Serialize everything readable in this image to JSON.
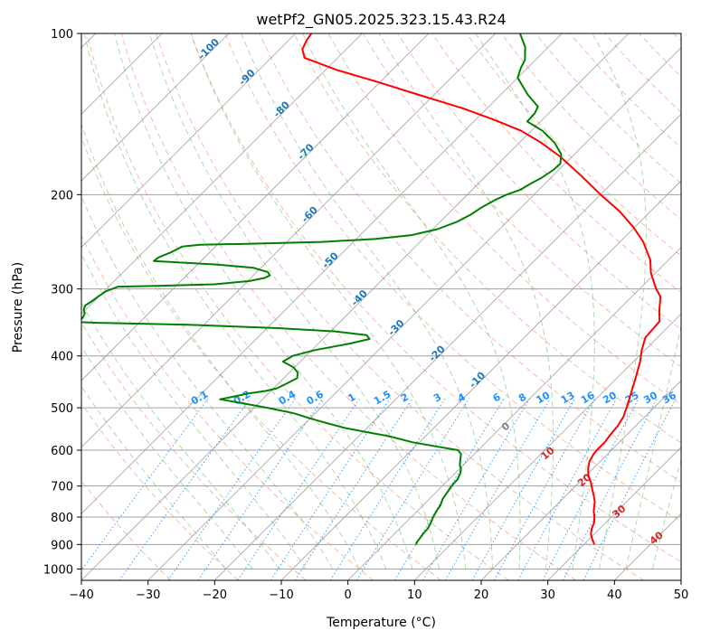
{
  "chart_data": {
    "type": "line",
    "title": "wetPf2_GN05.2025.323.15.43.R24",
    "xlabel": "Temperature (°C)",
    "ylabel": "Pressure (hPa)",
    "xlim": [
      -40,
      50
    ],
    "ylim": [
      1050,
      100
    ],
    "y_scale": "log",
    "x_ticks": [
      "−40",
      "−30",
      "−20",
      "−10",
      "0",
      "10",
      "20",
      "30",
      "40",
      "50"
    ],
    "y_ticks": [
      "100",
      "200",
      "300",
      "400",
      "500",
      "600",
      "700",
      "800",
      "900",
      "1000"
    ],
    "colors": {
      "temperature": "#ff0000",
      "dewpoint": "#008000",
      "isotherm": "#a0a0a0",
      "isobar": "#a0a0a0",
      "dry_adiabat": "#f08060",
      "moist_adiabat": "#60b060",
      "mixing_ratio": "#1e90ff",
      "label_blue": "#1f77b4",
      "label_red": "#d62728"
    },
    "series": [
      {
        "key": "temperature",
        "points": [
          [
            31.6,
            900
          ],
          [
            30.5,
            880
          ],
          [
            29.5,
            860
          ],
          [
            28.8,
            840
          ],
          [
            28.3,
            820
          ],
          [
            27.5,
            800
          ],
          [
            26.5,
            780
          ],
          [
            25.3,
            750
          ],
          [
            24.2,
            730
          ],
          [
            23.0,
            710
          ],
          [
            21.8,
            690
          ],
          [
            20.4,
            670
          ],
          [
            19.3,
            650
          ],
          [
            18.4,
            630
          ],
          [
            17.9,
            610
          ],
          [
            17.8,
            600
          ],
          [
            17.8,
            580
          ],
          [
            17.5,
            560
          ],
          [
            17.3,
            540
          ],
          [
            16.8,
            520
          ],
          [
            15.9,
            500
          ],
          [
            14.4,
            470
          ],
          [
            12.8,
            440
          ],
          [
            11.0,
            410
          ],
          [
            9.5,
            390
          ],
          [
            8.2,
            370
          ],
          [
            8.0,
            355
          ],
          [
            7.9,
            345
          ],
          [
            6.3,
            330
          ],
          [
            4.3,
            310
          ],
          [
            2.5,
            300
          ],
          [
            -0.7,
            280
          ],
          [
            -2.7,
            265
          ],
          [
            -6.5,
            245
          ],
          [
            -10.2,
            230
          ],
          [
            -14.6,
            215
          ],
          [
            -20.0,
            200
          ],
          [
            -25.5,
            185
          ],
          [
            -31.7,
            170
          ],
          [
            -36.7,
            160
          ],
          [
            -41.5,
            152
          ],
          [
            -47.2,
            145
          ],
          [
            -53.6,
            138
          ],
          [
            -62.5,
            130
          ],
          [
            -70.6,
            123
          ],
          [
            -78.3,
            117
          ],
          [
            -85.0,
            111
          ],
          [
            -86.6,
            107
          ],
          [
            -87.3,
            103
          ],
          [
            -87.6,
            100
          ]
        ]
      },
      {
        "key": "dewpoint",
        "points": [
          [
            4.8,
            900
          ],
          [
            4.6,
            890
          ],
          [
            4.5,
            880
          ],
          [
            4.3,
            860
          ],
          [
            4.2,
            840
          ],
          [
            3.8,
            820
          ],
          [
            3.3,
            800
          ],
          [
            2.9,
            780
          ],
          [
            2.6,
            760
          ],
          [
            2.0,
            740
          ],
          [
            1.7,
            720
          ],
          [
            1.4,
            700
          ],
          [
            1.3,
            690
          ],
          [
            1.3,
            680
          ],
          [
            1.0,
            670
          ],
          [
            0.7,
            660
          ],
          [
            0.2,
            650
          ],
          [
            -0.5,
            640
          ],
          [
            -1.0,
            630
          ],
          [
            -1.5,
            620
          ],
          [
            -2.0,
            610
          ],
          [
            -3.0,
            600
          ],
          [
            -7.0,
            590
          ],
          [
            -11.0,
            580
          ],
          [
            -15.5,
            565
          ],
          [
            -19.5,
            555
          ],
          [
            -23.4,
            545
          ],
          [
            -26.5,
            535
          ],
          [
            -29.5,
            525
          ],
          [
            -33.2,
            512
          ],
          [
            -38.0,
            500
          ],
          [
            -42.6,
            490
          ],
          [
            -46.4,
            482
          ],
          [
            -44.3,
            475
          ],
          [
            -43.0,
            470
          ],
          [
            -40.7,
            465
          ],
          [
            -39.5,
            460
          ],
          [
            -38.7,
            450
          ],
          [
            -38.0,
            440
          ],
          [
            -38.7,
            430
          ],
          [
            -40.2,
            420
          ],
          [
            -42.6,
            410
          ],
          [
            -42.0,
            400
          ],
          [
            -39.5,
            390
          ],
          [
            -35.5,
            380
          ],
          [
            -33.0,
            372
          ],
          [
            -34.0,
            366
          ],
          [
            -39.3,
            360
          ],
          [
            -48.4,
            355
          ],
          [
            -62.4,
            350
          ],
          [
            -76.2,
            347
          ],
          [
            -78.8,
            346
          ],
          [
            -79.2,
            343
          ],
          [
            -79.3,
            338
          ],
          [
            -79.6,
            333
          ],
          [
            -80.3,
            328
          ],
          [
            -80.7,
            322
          ],
          [
            -80.4,
            317
          ],
          [
            -80.1,
            310
          ],
          [
            -79.7,
            303
          ],
          [
            -78.6,
            297
          ],
          [
            -72.9,
            296
          ],
          [
            -64.5,
            294
          ],
          [
            -59.7,
            290
          ],
          [
            -57.9,
            286
          ],
          [
            -57.5,
            283
          ],
          [
            -58.3,
            279
          ],
          [
            -61.1,
            274
          ],
          [
            -67.2,
            270
          ],
          [
            -74.6,
            267
          ],
          [
            -77.1,
            266
          ],
          [
            -76.9,
            262
          ],
          [
            -75.8,
            256
          ],
          [
            -75.0,
            250
          ],
          [
            -72.6,
            248
          ],
          [
            -65.7,
            247
          ],
          [
            -54.7,
            245
          ],
          [
            -47.2,
            242
          ],
          [
            -42.3,
            238
          ],
          [
            -39.3,
            232
          ],
          [
            -37.5,
            225
          ],
          [
            -36.5,
            218
          ],
          [
            -36.0,
            212
          ],
          [
            -35.1,
            205
          ],
          [
            -34.1,
            200
          ],
          [
            -32.8,
            196
          ],
          [
            -32.2,
            191
          ],
          [
            -31.4,
            186
          ],
          [
            -30.8,
            180
          ],
          [
            -30.7,
            175
          ],
          [
            -32.0,
            168
          ],
          [
            -34.7,
            160
          ],
          [
            -38.3,
            152
          ],
          [
            -42.0,
            146
          ],
          [
            -42.1,
            141
          ],
          [
            -42.6,
            137
          ],
          [
            -46.0,
            130
          ],
          [
            -50.0,
            121
          ],
          [
            -51.0,
            116
          ],
          [
            -51.6,
            112
          ],
          [
            -53.5,
            106
          ],
          [
            -56.3,
            100
          ]
        ]
      }
    ],
    "isotherm_labels": [
      "-100",
      "-90",
      "-80",
      "-70",
      "-60",
      "-50",
      "-40",
      "-30",
      "-20",
      "-10"
    ],
    "mixing_ratio_labels": [
      "0.1",
      "0.2",
      "0.4",
      "0.6",
      "1",
      "1.5",
      "2",
      "3",
      "4",
      "6",
      "8",
      "10",
      "13",
      "16",
      "20",
      "25",
      "30",
      "36"
    ],
    "moist_label": "0",
    "dry_labels": [
      "10",
      "20",
      "30",
      "40"
    ]
  }
}
